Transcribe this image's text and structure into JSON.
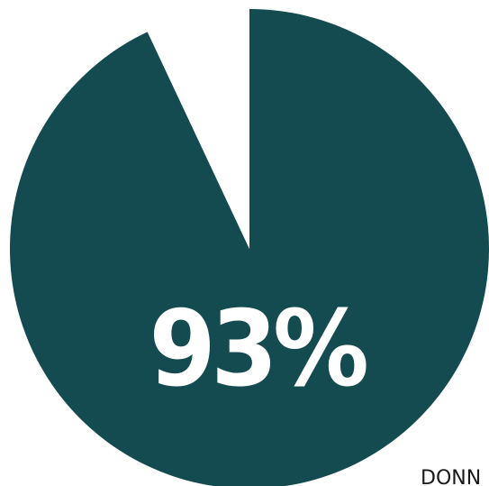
{
  "chart_data": {
    "type": "pie",
    "title": "",
    "values": [
      93,
      7
    ],
    "labels": [
      "93%",
      ""
    ],
    "colors": [
      "#134b50",
      "#ffffff"
    ],
    "center_label": "93%"
  },
  "footer": {
    "clipped_text": "DONN"
  }
}
